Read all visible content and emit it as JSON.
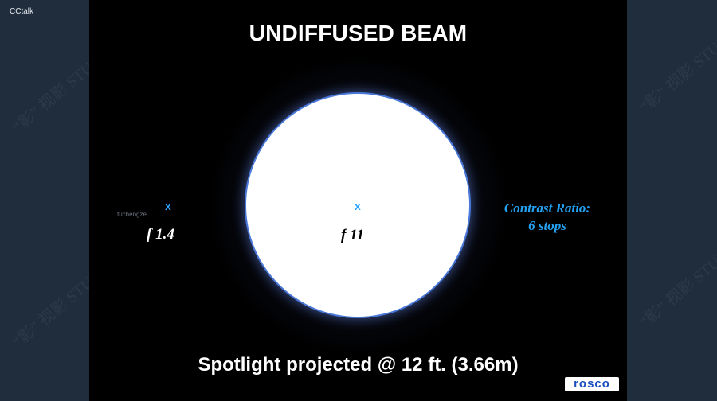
{
  "app": {
    "title": "CCtalk"
  },
  "slide": {
    "title": "UNDIFFUSED BEAM",
    "marker_left": "x",
    "marker_center": "x",
    "fstop_left": "f 1.4",
    "fstop_center": "f 11",
    "tiny_label": "fuchengze",
    "contrast_line1": "Contrast Ratio:",
    "contrast_line2": "6 stops",
    "caption": "Spotlight projected @ 12 ft. (3.66m)",
    "logo": "rosco"
  },
  "watermarks": {
    "text": "“影” 视影 STUD"
  },
  "colors": {
    "background_panel": "#1f2d3d",
    "slide_background": "#000000",
    "beam": "#ffffff",
    "marker": "#2aa4ff",
    "contrast_text": "#24a0f0",
    "logo_text": "#1b4fbf"
  }
}
